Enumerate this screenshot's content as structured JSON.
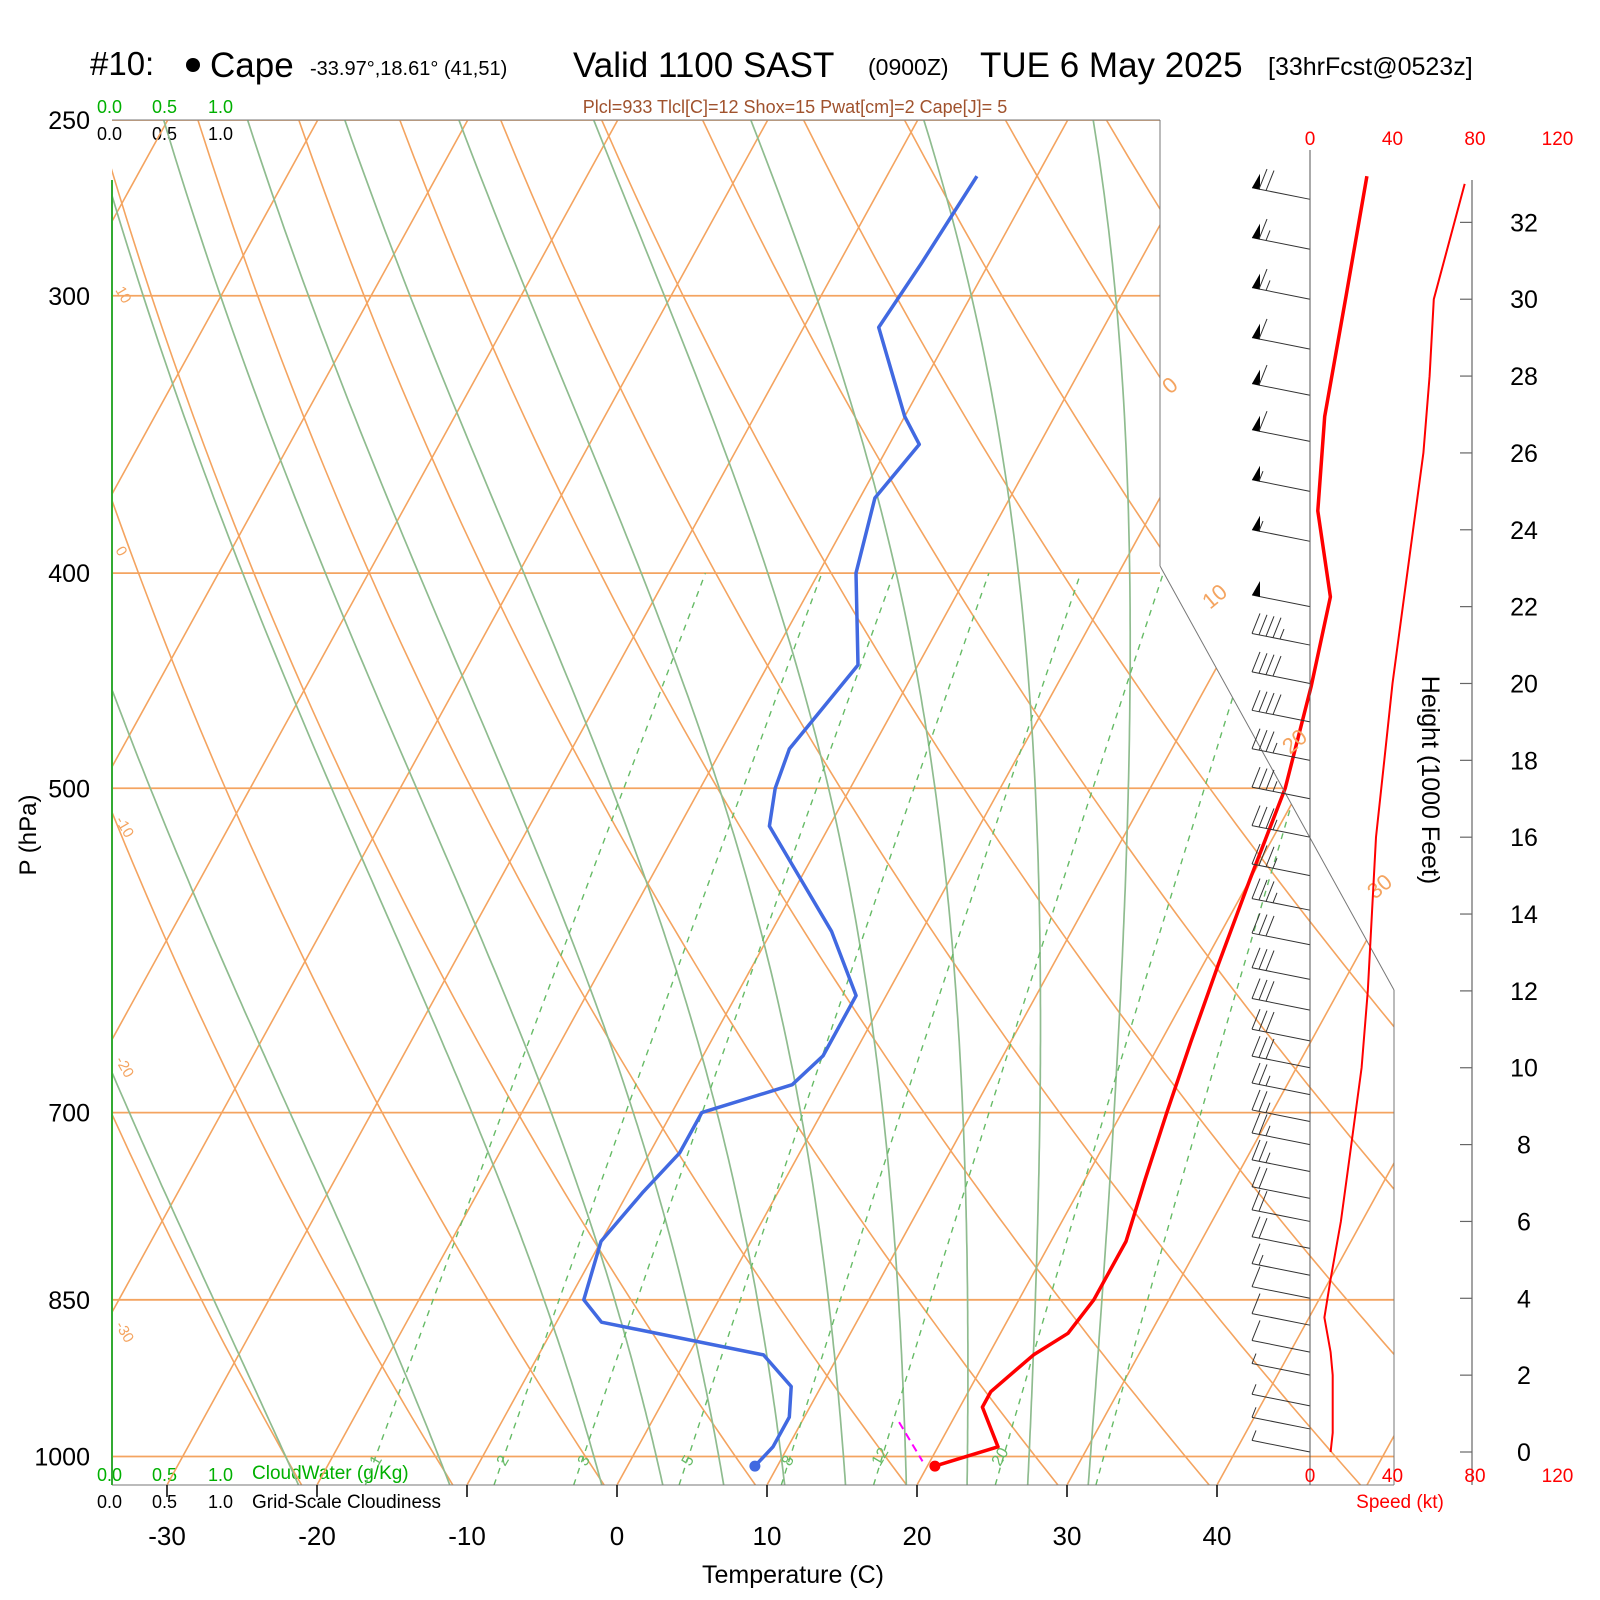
{
  "header": {
    "station": "#10:",
    "station_name": "Cape",
    "coords": "-33.97°,18.61° (41,51)",
    "valid": "Valid 1100 SAST",
    "zulu": "(0900Z)",
    "date": "TUE 6 May 2025",
    "forecast": "[33hrFcst@0523z]"
  },
  "indices": "Plcl=933 Tlcl[C]=12 Shox=15 Pwat[cm]=2 Cape[J]= 5",
  "scales": {
    "cloudwater_ticks": [
      "0.0",
      "0.5",
      "1.0"
    ],
    "cloudiness_ticks": [
      "0.0",
      "0.5",
      "1.0"
    ],
    "cloudwater_label": "CloudWater (g/Kg)",
    "cloudiness_label": "Grid-Scale Cloudiness",
    "speed_ticks": [
      "0",
      "40",
      "80",
      "120"
    ],
    "speed_label": "Speed (kt)"
  },
  "colors": {
    "temperature": "#ff0000",
    "dewpoint": "#4169e1",
    "isotherm": "#f4a460",
    "moist_adiabat": "#8fbc8f",
    "mixing_ratio": "#66bb66",
    "cloudwater": "#00b000",
    "indices": "#a0522d",
    "speed": "#ff0000"
  },
  "chart_data": {
    "type": "line",
    "xlabel": "Temperature (C)",
    "ylabel": "P (hPa)",
    "height_label": "Height (1000 Feet)",
    "x_ticks": [
      -30,
      -20,
      -10,
      0,
      10,
      20,
      30,
      40
    ],
    "pressure_ticks": [
      250,
      300,
      400,
      500,
      700,
      850,
      1000
    ],
    "height_ticks": [
      0,
      2,
      4,
      6,
      8,
      10,
      12,
      14,
      16,
      18,
      20,
      22,
      24,
      26,
      28,
      30,
      32
    ],
    "isotherm_labels": [
      "10",
      "0",
      "-10",
      "-20",
      "-30"
    ],
    "isotherm_labels_right": [
      "0",
      "10",
      "20",
      "30"
    ],
    "mixing_ratio_labels": [
      "1",
      "2",
      "3",
      "5",
      "8",
      "12",
      "20"
    ],
    "series": [
      {
        "name": "Temperature",
        "values": [
          [
            2,
            265
          ],
          [
            5,
            300
          ],
          [
            8,
            340
          ],
          [
            11,
            375
          ],
          [
            15,
            410
          ],
          [
            17,
            450
          ],
          [
            19,
            500
          ],
          [
            20,
            550
          ],
          [
            21,
            600
          ],
          [
            22,
            650
          ],
          [
            23,
            700
          ],
          [
            24,
            750
          ],
          [
            25,
            800
          ],
          [
            25,
            850
          ],
          [
            24.5,
            880
          ],
          [
            23,
            900
          ],
          [
            21.5,
            935
          ],
          [
            21.5,
            950
          ],
          [
            24,
            990
          ],
          [
            20.5,
            1010
          ]
        ]
      },
      {
        "name": "Dewpoint",
        "values": [
          [
            -24,
            265
          ],
          [
            -24.5,
            290
          ],
          [
            -25,
            310
          ],
          [
            -20,
            340
          ],
          [
            -18,
            350
          ],
          [
            -19,
            370
          ],
          [
            -17.5,
            400
          ],
          [
            -14,
            440
          ],
          [
            -15.5,
            480
          ],
          [
            -15,
            500
          ],
          [
            -14,
            520
          ],
          [
            -6,
            580
          ],
          [
            -2,
            620
          ],
          [
            -2,
            660
          ],
          [
            -3,
            680
          ],
          [
            -8,
            700
          ],
          [
            -8,
            730
          ],
          [
            -9,
            760
          ],
          [
            -10,
            800
          ],
          [
            -9,
            850
          ],
          [
            -7,
            870
          ],
          [
            5,
            900
          ],
          [
            8,
            930
          ],
          [
            9,
            960
          ],
          [
            9,
            990
          ],
          [
            8.5,
            1010
          ]
        ]
      }
    ],
    "wind_speed_profile": [
      [
        10,
        0
      ],
      [
        11,
        0.5
      ],
      [
        11,
        2
      ],
      [
        10,
        2.6
      ],
      [
        7,
        3.5
      ],
      [
        10,
        4.5
      ],
      [
        15,
        6
      ],
      [
        20,
        8
      ],
      [
        25,
        10
      ],
      [
        28,
        12
      ],
      [
        30,
        14
      ],
      [
        32,
        16
      ],
      [
        36,
        18
      ],
      [
        40,
        20
      ],
      [
        45,
        22
      ],
      [
        50,
        24
      ],
      [
        55,
        26
      ],
      [
        58,
        28
      ],
      [
        60,
        30
      ],
      [
        70,
        32
      ],
      [
        75,
        33
      ]
    ],
    "wind_barb_heights": [
      0,
      0.6,
      1.2,
      2.0,
      2.6,
      3.3,
      4.0,
      4.6,
      5.3,
      6.0,
      6.6,
      7.3,
      8.0,
      8.6,
      9.3,
      10.0,
      10.7,
      11.5,
      12.3,
      13.2,
      14.1,
      15.0,
      16.0,
      17.0,
      18.0,
      19.0,
      20.0,
      21.0,
      22.0,
      23.7,
      25.0,
      26.3,
      27.5,
      28.7,
      30.0,
      31.3,
      32.6
    ],
    "wind_barb_speeds": [
      5,
      5,
      5,
      5,
      10,
      10,
      10,
      15,
      20,
      20,
      20,
      25,
      25,
      25,
      25,
      30,
      30,
      30,
      30,
      30,
      35,
      35,
      35,
      35,
      35,
      40,
      40,
      45,
      50,
      55,
      55,
      60,
      60,
      60,
      65,
      65,
      70
    ]
  }
}
